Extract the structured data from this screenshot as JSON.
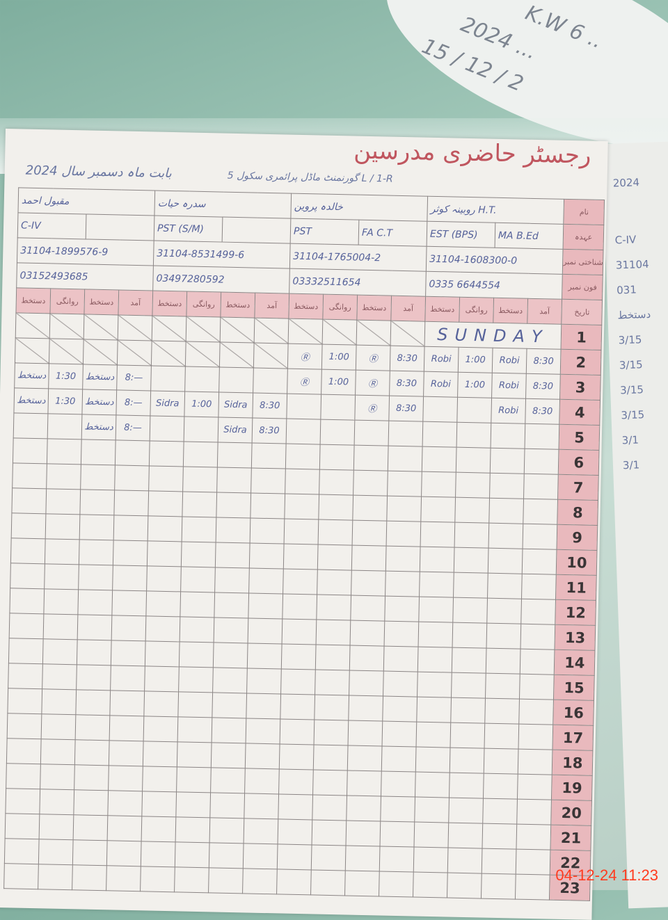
{
  "sticky_note": {
    "lines": [
      "K.W 6 ..",
      "2024 ...",
      "15 / 12 / 2"
    ]
  },
  "register": {
    "title": "رجسٹر حاضری مدرسین",
    "school": "گورنمنٹ ماڈل پرائمری سکول 5 L / 1-R",
    "period": "بابت ماہ دسمبر سال 2024",
    "row_labels": [
      "نام",
      "عہدہ",
      "شناختی نمبر",
      "فون نمبر",
      "تاریخ"
    ],
    "teachers": [
      {
        "name": "مقبول احمد",
        "designation": "",
        "post": "C-IV",
        "cnic": "31104-1899576-9",
        "phone": "03152493685"
      },
      {
        "name": "سدرہ حیات",
        "designation": "",
        "post": "PST (S/M)",
        "cnic": "31104-8531499-6",
        "phone": "03497280592"
      },
      {
        "name": "خالدہ پروین",
        "designation": "FA C.T",
        "post": "PST",
        "cnic": "31104-1765004-2",
        "phone": "03332511654"
      },
      {
        "name": "روبینہ کوثر H.T.",
        "designation": "MA B.Ed",
        "post": "EST (BPS)",
        "cnic": "31104-1608300-0",
        "phone": "0335 6644554"
      }
    ],
    "column_headers": [
      "دستخط",
      "روانگی",
      "دستخط",
      "آمد",
      "دستخط",
      "روانگی",
      "دستخط",
      "آمد",
      "دستخط",
      "روانگی",
      "دستخط",
      "آمد",
      "دستخط",
      "روانگی",
      "دستخط",
      "آمد"
    ],
    "days": [
      {
        "day": "1",
        "note": "SUNDAY",
        "cells": []
      },
      {
        "day": "2",
        "cells": [
          "",
          "",
          "",
          "",
          "",
          "",
          "",
          "",
          "Ⓡ",
          "1:00",
          "Ⓡ",
          "8:30",
          "Robi",
          "1:00",
          "Robi",
          "8:30"
        ]
      },
      {
        "day": "3",
        "cells": [
          "دستخط",
          "1:30",
          "دستخط",
          "8:—",
          "",
          "",
          "",
          "",
          "Ⓡ",
          "1:00",
          "Ⓡ",
          "8:30",
          "Robi",
          "1:00",
          "Robi",
          "8:30"
        ]
      },
      {
        "day": "4",
        "cells": [
          "دستخط",
          "1:30",
          "دستخط",
          "8:—",
          "Sidra",
          "1:00",
          "Sidra",
          "8:30",
          "",
          "",
          "Ⓡ",
          "8:30",
          "",
          "",
          "Robi",
          "8:30"
        ]
      },
      {
        "day": "5",
        "cells": [
          "",
          "",
          "دستخط",
          "8:—",
          "",
          "",
          "Sidra",
          "8:30"
        ]
      },
      {
        "day": "6"
      },
      {
        "day": "7"
      },
      {
        "day": "8"
      },
      {
        "day": "9"
      },
      {
        "day": "10"
      },
      {
        "day": "11"
      },
      {
        "day": "12"
      },
      {
        "day": "13"
      },
      {
        "day": "14"
      },
      {
        "day": "15"
      },
      {
        "day": "16"
      },
      {
        "day": "17"
      },
      {
        "day": "18"
      },
      {
        "day": "19"
      },
      {
        "day": "20"
      },
      {
        "day": "21"
      },
      {
        "day": "22"
      },
      {
        "day": "23"
      }
    ]
  },
  "next_page": {
    "year": "2024",
    "lines": [
      "C-IV",
      "31104",
      "031",
      "دستخط",
      "3/15",
      "3/15",
      "3/15",
      "3/15",
      "3/1",
      "3/1"
    ]
  },
  "timestamp": "04-12-24  11:23"
}
